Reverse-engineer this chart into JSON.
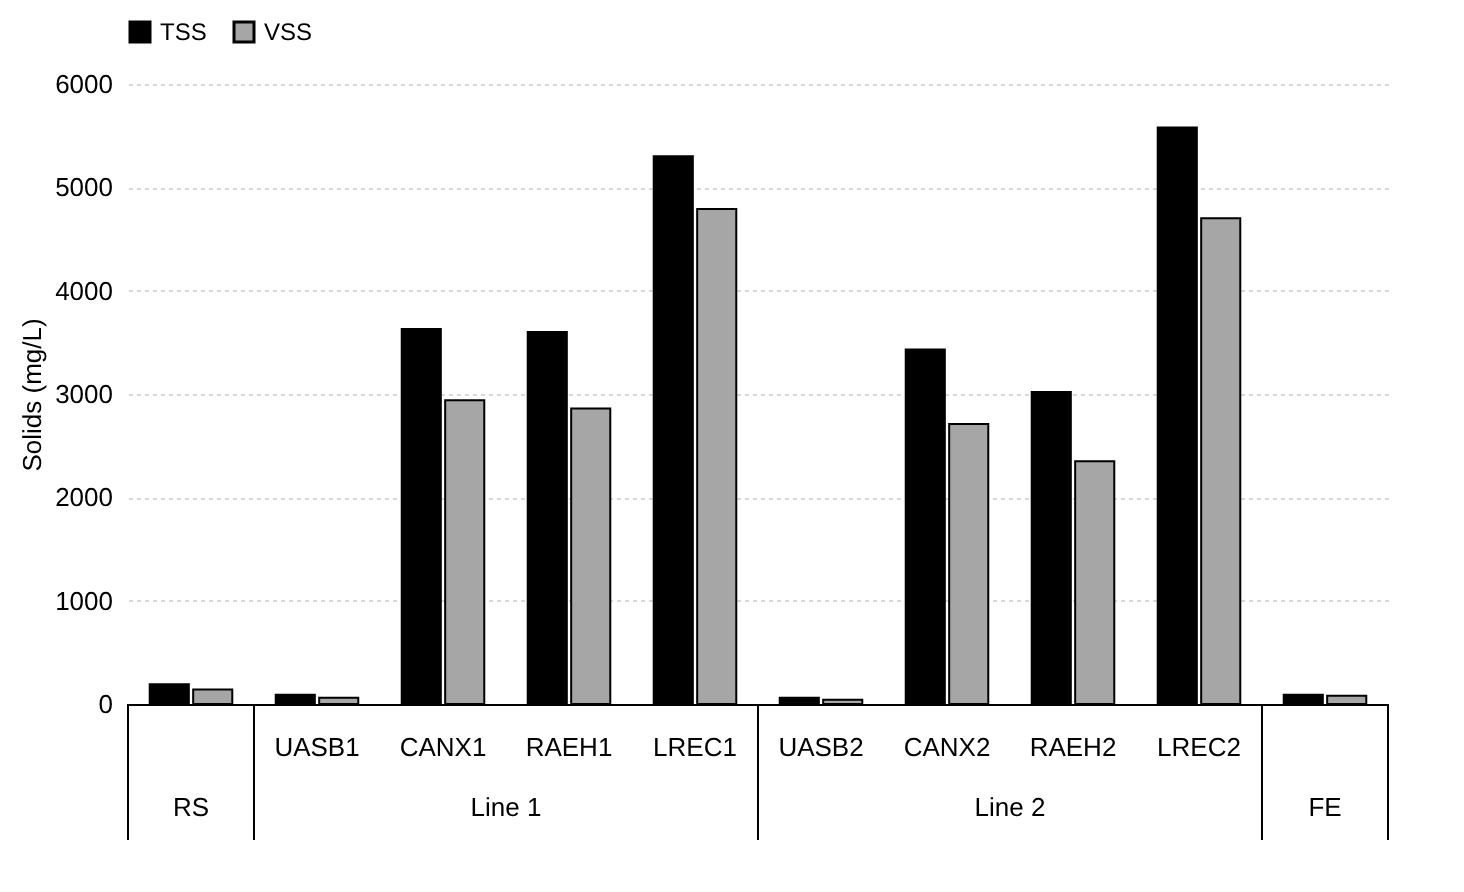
{
  "chart_data": {
    "type": "bar",
    "ylabel": "Solids (mg/L)",
    "categories": [
      null,
      "UASB1",
      "CANX1",
      "RAEH1",
      "LREC1",
      "UASB2",
      "CANX2",
      "RAEH2",
      "LREC2",
      null
    ],
    "series": [
      {
        "name": "TSS",
        "color": "#000000",
        "values": [
          190,
          90,
          3630,
          3600,
          5300,
          60,
          3430,
          3020,
          5580,
          90
        ]
      },
      {
        "name": "VSS",
        "color": "#a6a6a6",
        "values": [
          140,
          60,
          2940,
          2860,
          4790,
          40,
          2710,
          2350,
          4700,
          80
        ]
      }
    ],
    "annotations": [
      "RS",
      "Line 1",
      "Line 2",
      "FE"
    ],
    "ylim": [
      0,
      6000
    ],
    "yticks": [
      0,
      1000,
      2000,
      3000,
      4000,
      5000,
      6000
    ],
    "grid": "y",
    "legend": "top"
  }
}
